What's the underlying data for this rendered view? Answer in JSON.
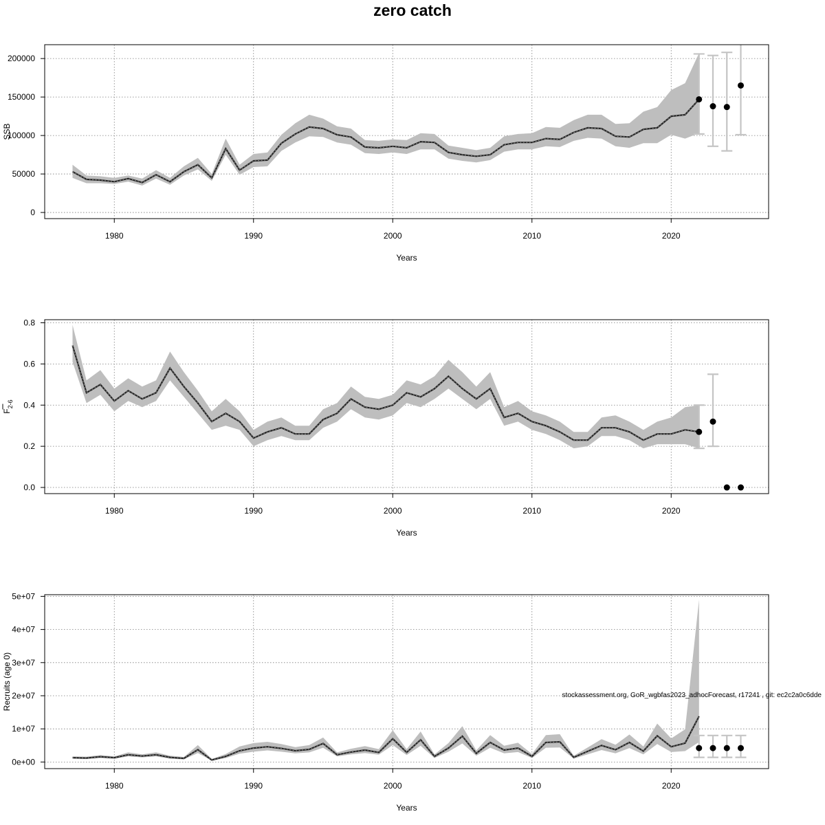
{
  "figure": {
    "title": "zero catch",
    "footnote": "stockassessment.org, GoR_wgbfas2023_adhocForecast, r17241 , git: ec2c2a0c6dde"
  },
  "colors": {
    "band": "#bebebe",
    "line": "#222222",
    "interval": "#c4c4c4",
    "point": "#000000",
    "grid": "#7a7a7a"
  },
  "chart_data": [
    {
      "type": "line",
      "panel": "ssb",
      "xlabel": "Years",
      "ylabel": "SSB",
      "xlim": [
        1975,
        2027
      ],
      "ylim": [
        -8000,
        218000
      ],
      "xticks": [
        1980,
        1990,
        2000,
        2010,
        2020
      ],
      "yticks": [
        0,
        50000,
        100000,
        150000,
        200000
      ],
      "ytick_labels": [
        "0",
        "50000",
        "100000",
        "150000",
        "200000"
      ],
      "grid": true,
      "x": [
        1977,
        1978,
        1979,
        1980,
        1981,
        1982,
        1983,
        1984,
        1985,
        1986,
        1987,
        1988,
        1989,
        1990,
        1991,
        1992,
        1993,
        1994,
        1995,
        1996,
        1997,
        1998,
        1999,
        2000,
        2001,
        2002,
        2003,
        2004,
        2005,
        2006,
        2007,
        2008,
        2009,
        2010,
        2011,
        2012,
        2013,
        2014,
        2015,
        2016,
        2017,
        2018,
        2019,
        2020,
        2021,
        2022
      ],
      "estimate": [
        53000,
        43000,
        42000,
        40000,
        44000,
        39000,
        49000,
        40000,
        53000,
        62000,
        45000,
        83000,
        55000,
        67000,
        68000,
        90000,
        102000,
        111000,
        109000,
        101000,
        98000,
        85000,
        84000,
        86000,
        84000,
        92000,
        91000,
        78000,
        75000,
        73000,
        75000,
        88000,
        91000,
        91000,
        96000,
        95000,
        104000,
        110000,
        109000,
        99000,
        98000,
        108000,
        110000,
        125000,
        127000,
        147000
      ],
      "lower": [
        45000,
        38000,
        38000,
        37000,
        40000,
        35000,
        44000,
        36000,
        48000,
        56000,
        41000,
        75000,
        49000,
        59000,
        60000,
        80000,
        91000,
        99000,
        98000,
        91000,
        88000,
        77000,
        76000,
        78000,
        76000,
        82000,
        82000,
        70000,
        67000,
        65000,
        68000,
        79000,
        82000,
        82000,
        86000,
        85000,
        93000,
        97000,
        96000,
        86000,
        84000,
        90000,
        90000,
        101000,
        96000,
        103000
      ],
      "upper": [
        62000,
        48000,
        47000,
        45000,
        48000,
        44000,
        55000,
        45000,
        60000,
        71000,
        50000,
        96000,
        62000,
        76000,
        78000,
        101000,
        116000,
        127000,
        122000,
        112000,
        109000,
        94000,
        93000,
        95000,
        94000,
        103000,
        102000,
        87000,
        84000,
        81000,
        84000,
        99000,
        102000,
        103000,
        111000,
        110000,
        120000,
        127000,
        127000,
        115000,
        116000,
        131000,
        137000,
        159000,
        168000,
        207000
      ],
      "forecast": [
        {
          "year": 2022,
          "value": 147000,
          "low": 102000,
          "high": 206000
        },
        {
          "year": 2023,
          "value": 138000,
          "low": 86000,
          "high": 204000
        },
        {
          "year": 2024,
          "value": 137000,
          "low": 80000,
          "high": 208000
        },
        {
          "year": 2025,
          "value": 165000,
          "low": 101000,
          "high": 230000
        }
      ]
    },
    {
      "type": "line",
      "panel": "fbar",
      "xlabel": "Years",
      "ylabel": "F",
      "ylabel_subscript": "2-6",
      "xlim": [
        1975,
        2027
      ],
      "ylim": [
        -0.03,
        0.815
      ],
      "xticks": [
        1980,
        1990,
        2000,
        2010,
        2020
      ],
      "yticks": [
        0.0,
        0.2,
        0.4,
        0.6,
        0.8
      ],
      "ytick_labels": [
        "0.0",
        "0.2",
        "0.4",
        "0.6",
        "0.8"
      ],
      "grid": true,
      "x": [
        1977,
        1978,
        1979,
        1980,
        1981,
        1982,
        1983,
        1984,
        1985,
        1986,
        1987,
        1988,
        1989,
        1990,
        1991,
        1992,
        1993,
        1994,
        1995,
        1996,
        1997,
        1998,
        1999,
        2000,
        2001,
        2002,
        2003,
        2004,
        2005,
        2006,
        2007,
        2008,
        2009,
        2010,
        2011,
        2012,
        2013,
        2014,
        2015,
        2016,
        2017,
        2018,
        2019,
        2020,
        2021,
        2022
      ],
      "estimate": [
        0.69,
        0.46,
        0.5,
        0.42,
        0.47,
        0.43,
        0.46,
        0.58,
        0.49,
        0.41,
        0.32,
        0.36,
        0.32,
        0.24,
        0.27,
        0.29,
        0.26,
        0.26,
        0.33,
        0.36,
        0.43,
        0.39,
        0.38,
        0.4,
        0.46,
        0.44,
        0.48,
        0.54,
        0.48,
        0.43,
        0.48,
        0.34,
        0.36,
        0.32,
        0.3,
        0.27,
        0.23,
        0.23,
        0.29,
        0.29,
        0.27,
        0.23,
        0.26,
        0.26,
        0.28,
        0.27
      ],
      "lower": [
        0.61,
        0.41,
        0.45,
        0.37,
        0.42,
        0.39,
        0.42,
        0.52,
        0.44,
        0.36,
        0.28,
        0.3,
        0.28,
        0.2,
        0.23,
        0.25,
        0.23,
        0.23,
        0.29,
        0.32,
        0.38,
        0.34,
        0.33,
        0.35,
        0.41,
        0.39,
        0.43,
        0.48,
        0.43,
        0.38,
        0.43,
        0.3,
        0.32,
        0.28,
        0.26,
        0.23,
        0.19,
        0.2,
        0.25,
        0.25,
        0.23,
        0.19,
        0.21,
        0.21,
        0.21,
        0.19
      ],
      "upper": [
        0.79,
        0.52,
        0.57,
        0.48,
        0.53,
        0.49,
        0.52,
        0.66,
        0.56,
        0.47,
        0.37,
        0.43,
        0.37,
        0.28,
        0.32,
        0.34,
        0.3,
        0.3,
        0.38,
        0.41,
        0.49,
        0.44,
        0.43,
        0.45,
        0.52,
        0.5,
        0.54,
        0.62,
        0.56,
        0.49,
        0.56,
        0.39,
        0.42,
        0.37,
        0.35,
        0.32,
        0.27,
        0.27,
        0.34,
        0.35,
        0.32,
        0.28,
        0.32,
        0.34,
        0.39,
        0.4
      ],
      "forecast": [
        {
          "year": 2022,
          "value": 0.27,
          "low": 0.19,
          "high": 0.4
        },
        {
          "year": 2023,
          "value": 0.32,
          "low": 0.2,
          "high": 0.55
        },
        {
          "year": 2024,
          "value": 0.0,
          "low": 0.0,
          "high": 0.0
        },
        {
          "year": 2025,
          "value": 0.0,
          "low": 0.0,
          "high": 0.0
        }
      ]
    },
    {
      "type": "line",
      "panel": "recruits",
      "xlabel": "Years",
      "ylabel": "Recruits (age 0)",
      "xlim": [
        1975,
        2027
      ],
      "ylim": [
        -2000000,
        50500000
      ],
      "xticks": [
        1980,
        1990,
        2000,
        2010,
        2020
      ],
      "yticks": [
        0,
        10000000,
        20000000,
        30000000,
        40000000,
        50000000
      ],
      "ytick_labels": [
        "0e+00",
        "1e+07",
        "2e+07",
        "3e+07",
        "4e+07",
        "5e+07"
      ],
      "grid": true,
      "x": [
        1977,
        1978,
        1979,
        1980,
        1981,
        1982,
        1983,
        1984,
        1985,
        1986,
        1987,
        1988,
        1989,
        1990,
        1991,
        1992,
        1993,
        1994,
        1995,
        1996,
        1997,
        1998,
        1999,
        2000,
        2001,
        2002,
        2003,
        2004,
        2005,
        2006,
        2007,
        2008,
        2009,
        2010,
        2011,
        2012,
        2013,
        2014,
        2015,
        2016,
        2017,
        2018,
        2019,
        2020,
        2021,
        2022
      ],
      "estimate": [
        1300000,
        1200000,
        1600000,
        1300000,
        2200000,
        1800000,
        2200000,
        1400000,
        1100000,
        3700000,
        600000,
        1700000,
        3400000,
        4200000,
        4600000,
        4100000,
        3400000,
        3800000,
        5600000,
        2200000,
        3000000,
        3600000,
        2900000,
        7000000,
        2900000,
        6700000,
        1700000,
        4200000,
        7800000,
        2600000,
        5900000,
        3600000,
        4200000,
        1700000,
        5900000,
        6100000,
        1400000,
        3200000,
        5000000,
        3700000,
        5900000,
        3300000,
        7900000,
        4600000,
        5700000,
        13800000
      ],
      "lower": [
        1000000,
        900000,
        1200000,
        1000000,
        1700000,
        1400000,
        1700000,
        1000000,
        800000,
        2700000,
        400000,
        1200000,
        2500000,
        3100000,
        3500000,
        3100000,
        2600000,
        2900000,
        4300000,
        1700000,
        2300000,
        2700000,
        2200000,
        5100000,
        2100000,
        4900000,
        1200000,
        3100000,
        5600000,
        1900000,
        4300000,
        2600000,
        3000000,
        1200000,
        4300000,
        4400000,
        1000000,
        2300000,
        3600000,
        2600000,
        4200000,
        2300000,
        5400000,
        3000000,
        3300000,
        6000000
      ],
      "upper": [
        1700000,
        1600000,
        2100000,
        1700000,
        2900000,
        2300000,
        2900000,
        1900000,
        1500000,
        5100000,
        900000,
        2400000,
        4700000,
        5700000,
        6100000,
        5400000,
        4500000,
        5100000,
        7400000,
        2900000,
        4000000,
        4800000,
        3900000,
        9600000,
        3900000,
        9200000,
        2300000,
        5700000,
        10800000,
        3500000,
        8100000,
        4900000,
        5800000,
        2400000,
        8100000,
        8400000,
        1900000,
        4400000,
        6900000,
        5200000,
        8300000,
        4700000,
        11600000,
        7100000,
        9900000,
        49000000
      ],
      "forecast": [
        {
          "year": 2022,
          "value": 4200000,
          "low": 1400000,
          "high": 8000000
        },
        {
          "year": 2023,
          "value": 4200000,
          "low": 1400000,
          "high": 8000000
        },
        {
          "year": 2024,
          "value": 4200000,
          "low": 1400000,
          "high": 8000000
        },
        {
          "year": 2025,
          "value": 4200000,
          "low": 1400000,
          "high": 8000000
        }
      ]
    }
  ]
}
